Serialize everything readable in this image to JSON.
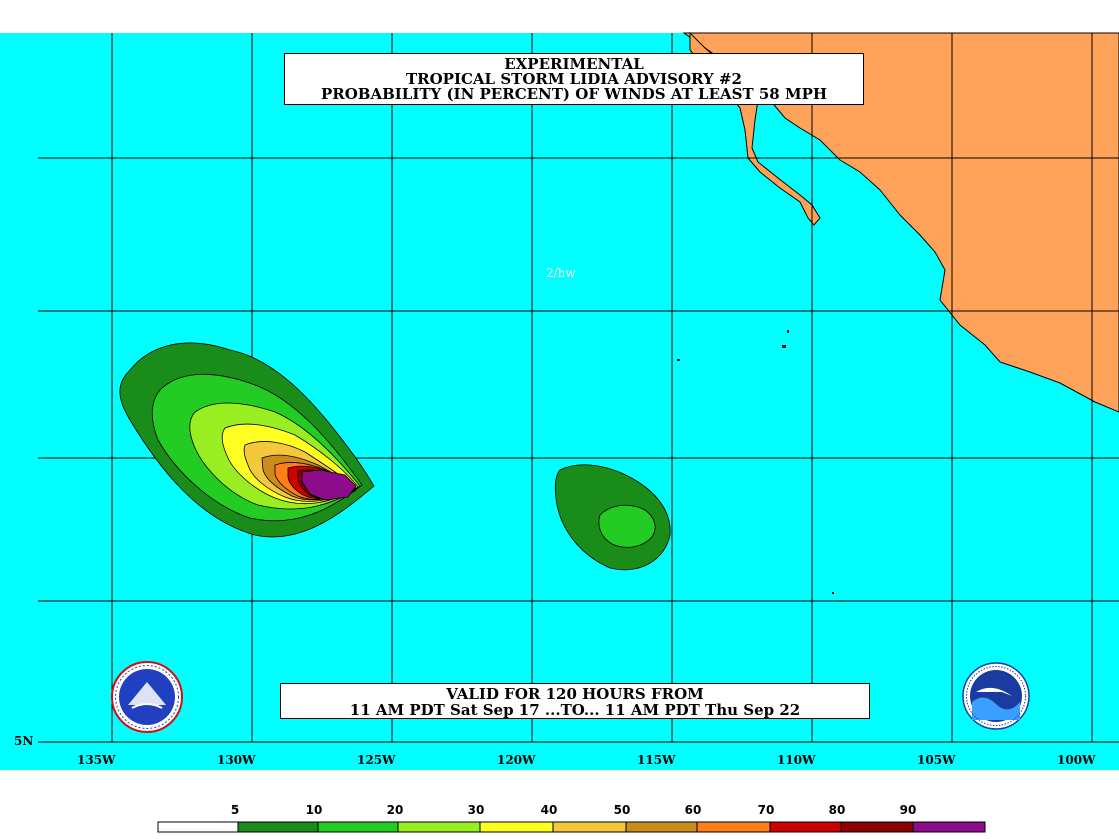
{
  "title": {
    "line1": "EXPERIMENTAL",
    "line2": "TROPICAL STORM LIDIA ADVISORY #2",
    "line3": "PROBABILITY (IN PERCENT) OF WINDS AT LEAST 58 MPH"
  },
  "tag": "2/hw",
  "valid": {
    "line1": "VALID FOR 120 HOURS FROM",
    "line2": "11 AM PDT Sat Sep 17 ...TO... 11 AM PDT Thu Sep 22"
  },
  "axes": {
    "lon_labels": [
      "135W",
      "130W",
      "125W",
      "120W",
      "115W",
      "110W",
      "105W",
      "100W"
    ],
    "lat_label": "5N"
  },
  "legend": {
    "labels": [
      "5",
      "10",
      "20",
      "30",
      "40",
      "50",
      "60",
      "70",
      "80",
      "90"
    ],
    "colors": [
      "#ffffff",
      "#1a8c1a",
      "#22cc22",
      "#99ee22",
      "#ffff22",
      "#f5c83c",
      "#cc8c1c",
      "#ff7e1a",
      "#cc0000",
      "#8c0000",
      "#8c0c8c"
    ]
  },
  "colors": {
    "ocean": "#00ffff",
    "land": "#ffa35a",
    "grid": "#000000"
  },
  "logos": {
    "left": "nws-logo",
    "right": "noaa-logo"
  }
}
